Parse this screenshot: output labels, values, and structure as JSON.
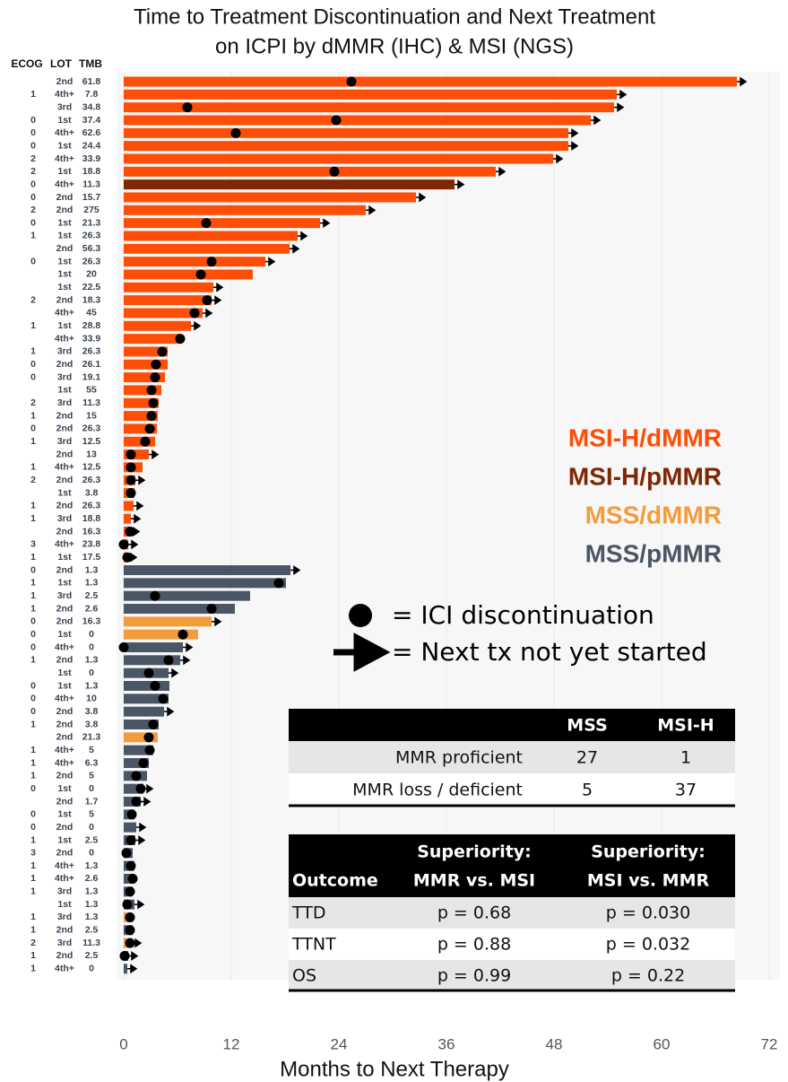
{
  "chart_data": {
    "type": "swimmer",
    "title_lines": [
      "Time to Treatment Discontinuation and Next Treatment",
      "on ICPI by dMMR (IHC) & MSI (NGS)"
    ],
    "x_label": "Months to Next Therapy",
    "xlim": [
      0,
      72
    ],
    "xticks": [
      0,
      12,
      24,
      36,
      48,
      60,
      72
    ],
    "grid": true,
    "column_headers": [
      "ECOG",
      "LOT",
      "TMB"
    ],
    "groups": [
      {
        "name": "MSI-H/dMMR",
        "color": "#fc4e07"
      },
      {
        "name": "MSI-H/pMMR",
        "color": "#7f2704"
      },
      {
        "name": "MSS/dMMR",
        "color": "#f39c3d"
      },
      {
        "name": "MSS/pMMR",
        "color": "#4a5566"
      }
    ],
    "symbol_legend": {
      "dot": "= ICI discontinuation",
      "arrow": "= Next tx not yet started"
    },
    "rows": [
      {
        "ecog": null,
        "lot": "2nd",
        "tmb": 61.8,
        "group": 0,
        "months": 68.4,
        "discontinued": 25.4,
        "ongoing": true
      },
      {
        "ecog": 1,
        "lot": "4th+",
        "tmb": 7.8,
        "group": 0,
        "months": 55,
        "discontinued": null,
        "ongoing": true
      },
      {
        "ecog": null,
        "lot": "3rd",
        "tmb": 34.8,
        "group": 0,
        "months": 54.7,
        "discontinued": 7.1,
        "ongoing": true
      },
      {
        "ecog": 0,
        "lot": "1st",
        "tmb": 37.4,
        "group": 0,
        "months": 52.1,
        "discontinued": 23.7,
        "ongoing": true
      },
      {
        "ecog": 0,
        "lot": "4th+",
        "tmb": 62.6,
        "group": 0,
        "months": 49.6,
        "discontinued": 12.5,
        "ongoing": true
      },
      {
        "ecog": 0,
        "lot": "1st",
        "tmb": 24.4,
        "group": 0,
        "months": 49.6,
        "discontinued": null,
        "ongoing": true
      },
      {
        "ecog": 2,
        "lot": "4th+",
        "tmb": 33.9,
        "group": 0,
        "months": 47.9,
        "discontinued": null,
        "ongoing": true
      },
      {
        "ecog": 2,
        "lot": "1st",
        "tmb": 18.8,
        "group": 0,
        "months": 41.5,
        "discontinued": 23.5,
        "ongoing": true
      },
      {
        "ecog": 0,
        "lot": "4th+",
        "tmb": 11.3,
        "group": 1,
        "months": 36.9,
        "discontinued": null,
        "ongoing": true
      },
      {
        "ecog": 0,
        "lot": "2nd",
        "tmb": 15.7,
        "group": 0,
        "months": 32.6,
        "discontinued": null,
        "ongoing": true
      },
      {
        "ecog": 2,
        "lot": "2nd",
        "tmb": 275,
        "group": 0,
        "months": 27,
        "discontinued": null,
        "ongoing": true
      },
      {
        "ecog": 0,
        "lot": "1st",
        "tmb": 21.3,
        "group": 0,
        "months": 21.9,
        "discontinued": 9.2,
        "ongoing": true
      },
      {
        "ecog": 1,
        "lot": "1st",
        "tmb": 26.3,
        "group": 0,
        "months": 19.4,
        "discontinued": null,
        "ongoing": true
      },
      {
        "ecog": null,
        "lot": "2nd",
        "tmb": 56.3,
        "group": 0,
        "months": 18.5,
        "discontinued": null,
        "ongoing": true
      },
      {
        "ecog": 0,
        "lot": "1st",
        "tmb": 26.3,
        "group": 0,
        "months": 15.8,
        "discontinued": 9.8,
        "ongoing": true
      },
      {
        "ecog": null,
        "lot": "1st",
        "tmb": 20,
        "group": 0,
        "months": 14.4,
        "discontinued": 8.6,
        "ongoing": false
      },
      {
        "ecog": null,
        "lot": "1st",
        "tmb": 22.5,
        "group": 0,
        "months": 10,
        "discontinued": null,
        "ongoing": true
      },
      {
        "ecog": 2,
        "lot": "2nd",
        "tmb": 18.3,
        "group": 0,
        "months": 9.8,
        "discontinued": 9.3,
        "ongoing": true
      },
      {
        "ecog": null,
        "lot": "4th+",
        "tmb": 45,
        "group": 0,
        "months": 8.8,
        "discontinued": 7.9,
        "ongoing": true
      },
      {
        "ecog": 1,
        "lot": "1st",
        "tmb": 28.8,
        "group": 0,
        "months": 7.5,
        "discontinued": null,
        "ongoing": true
      },
      {
        "ecog": null,
        "lot": "4th+",
        "tmb": 33.9,
        "group": 0,
        "months": 6.4,
        "discontinued": 6.3,
        "ongoing": false
      },
      {
        "ecog": 1,
        "lot": "3rd",
        "tmb": 26.3,
        "group": 0,
        "months": 4.9,
        "discontinued": 4.3,
        "ongoing": false
      },
      {
        "ecog": 0,
        "lot": "2nd",
        "tmb": 26.1,
        "group": 0,
        "months": 4.9,
        "discontinued": 3.6,
        "ongoing": false
      },
      {
        "ecog": 0,
        "lot": "3rd",
        "tmb": 19.1,
        "group": 0,
        "months": 4.6,
        "discontinued": 3.5,
        "ongoing": false
      },
      {
        "ecog": null,
        "lot": "1st",
        "tmb": 55,
        "group": 0,
        "months": 4.2,
        "discontinued": 3.1,
        "ongoing": false
      },
      {
        "ecog": 2,
        "lot": "3rd",
        "tmb": 11.3,
        "group": 0,
        "months": 3.9,
        "discontinued": 3.3,
        "ongoing": false
      },
      {
        "ecog": 1,
        "lot": "2nd",
        "tmb": 15,
        "group": 0,
        "months": 3.8,
        "discontinued": 3.1,
        "ongoing": false
      },
      {
        "ecog": 0,
        "lot": "2nd",
        "tmb": 26.3,
        "group": 0,
        "months": 3.7,
        "discontinued": 2.9,
        "ongoing": false
      },
      {
        "ecog": 1,
        "lot": "3rd",
        "tmb": 12.5,
        "group": 0,
        "months": 3.5,
        "discontinued": 2.4,
        "ongoing": false
      },
      {
        "ecog": null,
        "lot": "2nd",
        "tmb": 13,
        "group": 0,
        "months": 2.8,
        "discontinued": 0.8,
        "ongoing": true
      },
      {
        "ecog": 1,
        "lot": "4th+",
        "tmb": 12.5,
        "group": 0,
        "months": 2.1,
        "discontinued": 0.8,
        "ongoing": false
      },
      {
        "ecog": 2,
        "lot": "2nd",
        "tmb": 26.3,
        "group": 0,
        "months": 1.3,
        "discontinued": 0.8,
        "ongoing": true
      },
      {
        "ecog": null,
        "lot": "1st",
        "tmb": 3.8,
        "group": 0,
        "months": 1.2,
        "discontinued": 0.8,
        "ongoing": false
      },
      {
        "ecog": 1,
        "lot": "2nd",
        "tmb": 26.3,
        "group": 0,
        "months": 1.1,
        "discontinued": null,
        "ongoing": true
      },
      {
        "ecog": 1,
        "lot": "3rd",
        "tmb": 18.8,
        "group": 0,
        "months": 0.8,
        "discontinued": null,
        "ongoing": true
      },
      {
        "ecog": null,
        "lot": "2nd",
        "tmb": 16.3,
        "group": 0,
        "months": 0.7,
        "discontinued": 0.7,
        "ongoing": true
      },
      {
        "ecog": 3,
        "lot": "4th+",
        "tmb": 23.8,
        "group": 0,
        "months": 0.5,
        "discontinued": 0,
        "ongoing": true
      },
      {
        "ecog": 1,
        "lot": "1st",
        "tmb": 17.5,
        "group": 0,
        "months": 0.4,
        "discontinued": 0.4,
        "ongoing": true
      },
      {
        "ecog": 0,
        "lot": "2nd",
        "tmb": 1.3,
        "group": 3,
        "months": 18.6,
        "discontinued": null,
        "ongoing": true
      },
      {
        "ecog": 1,
        "lot": "1st",
        "tmb": 1.3,
        "group": 3,
        "months": 18.1,
        "discontinued": 17.3,
        "ongoing": false
      },
      {
        "ecog": 1,
        "lot": "3rd",
        "tmb": 2.5,
        "group": 3,
        "months": 14.1,
        "discontinued": 3.5,
        "ongoing": false
      },
      {
        "ecog": 1,
        "lot": "2nd",
        "tmb": 2.6,
        "group": 3,
        "months": 12.4,
        "discontinued": 9.8,
        "ongoing": false
      },
      {
        "ecog": 0,
        "lot": "2nd",
        "tmb": 16.3,
        "group": 2,
        "months": 9.8,
        "discontinued": null,
        "ongoing": true
      },
      {
        "ecog": 0,
        "lot": "1st",
        "tmb": 0,
        "group": 2,
        "months": 8.3,
        "discontinued": 6.6,
        "ongoing": false
      },
      {
        "ecog": 0,
        "lot": "4th+",
        "tmb": 0,
        "group": 3,
        "months": 6.6,
        "discontinued": 0,
        "ongoing": true
      },
      {
        "ecog": 1,
        "lot": "2nd",
        "tmb": 1.3,
        "group": 3,
        "months": 6.3,
        "discontinued": 5,
        "ongoing": true
      },
      {
        "ecog": null,
        "lot": "1st",
        "tmb": 0,
        "group": 3,
        "months": 5,
        "discontinued": 2.8,
        "ongoing": true
      },
      {
        "ecog": 0,
        "lot": "1st",
        "tmb": 1.3,
        "group": 3,
        "months": 5.1,
        "discontinued": 3.5,
        "ongoing": false
      },
      {
        "ecog": 0,
        "lot": "4th+",
        "tmb": 10,
        "group": 3,
        "months": 5,
        "discontinued": 4.4,
        "ongoing": false
      },
      {
        "ecog": 0,
        "lot": "2nd",
        "tmb": 3.8,
        "group": 3,
        "months": 4.5,
        "discontinued": null,
        "ongoing": true
      },
      {
        "ecog": 1,
        "lot": "2nd",
        "tmb": 3.8,
        "group": 3,
        "months": 3.9,
        "discontinued": 3.3,
        "ongoing": false
      },
      {
        "ecog": null,
        "lot": "2nd",
        "tmb": 21.3,
        "group": 2,
        "months": 3.8,
        "discontinued": 2.8,
        "ongoing": false
      },
      {
        "ecog": 1,
        "lot": "4th+",
        "tmb": 5,
        "group": 3,
        "months": 3.3,
        "discontinued": 2.9,
        "ongoing": false
      },
      {
        "ecog": 1,
        "lot": "4th+",
        "tmb": 6.3,
        "group": 3,
        "months": 2.8,
        "discontinued": 2.2,
        "ongoing": false
      },
      {
        "ecog": 1,
        "lot": "2nd",
        "tmb": 5,
        "group": 3,
        "months": 2.6,
        "discontinued": 1.4,
        "ongoing": false
      },
      {
        "ecog": 0,
        "lot": "1st",
        "tmb": 0,
        "group": 3,
        "months": 2.2,
        "discontinued": 1.9,
        "ongoing": true
      },
      {
        "ecog": null,
        "lot": "2nd",
        "tmb": 1.7,
        "group": 3,
        "months": 1.9,
        "discontinued": 1.4,
        "ongoing": true
      },
      {
        "ecog": 0,
        "lot": "1st",
        "tmb": 5,
        "group": 3,
        "months": 1.2,
        "discontinued": 0.9,
        "ongoing": false
      },
      {
        "ecog": 0,
        "lot": "2nd",
        "tmb": 0,
        "group": 3,
        "months": 1.4,
        "discontinued": null,
        "ongoing": true
      },
      {
        "ecog": 1,
        "lot": "1st",
        "tmb": 2.5,
        "group": 3,
        "months": 1.3,
        "discontinued": 0.8,
        "ongoing": true
      },
      {
        "ecog": 3,
        "lot": "2nd",
        "tmb": 0,
        "group": 3,
        "months": 1,
        "discontinued": 0.3,
        "ongoing": false
      },
      {
        "ecog": 1,
        "lot": "4th+",
        "tmb": 1.3,
        "group": 3,
        "months": 1.2,
        "discontinued": 0.8,
        "ongoing": false
      },
      {
        "ecog": 1,
        "lot": "4th+",
        "tmb": 2.6,
        "group": 3,
        "months": 1.2,
        "discontinued": 1,
        "ongoing": false
      },
      {
        "ecog": 1,
        "lot": "3rd",
        "tmb": 1.3,
        "group": 3,
        "months": 1,
        "discontinued": 0.7,
        "ongoing": false
      },
      {
        "ecog": null,
        "lot": "1st",
        "tmb": 1.3,
        "group": 3,
        "months": 1.2,
        "discontinued": 0.4,
        "ongoing": true
      },
      {
        "ecog": 1,
        "lot": "3rd",
        "tmb": 1.3,
        "group": 2,
        "months": 1,
        "discontinued": 0.7,
        "ongoing": false
      },
      {
        "ecog": 1,
        "lot": "2nd",
        "tmb": 2.5,
        "group": 3,
        "months": 1,
        "discontinued": 0.7,
        "ongoing": false
      },
      {
        "ecog": 2,
        "lot": "3rd",
        "tmb": 11.3,
        "group": 2,
        "months": 0.9,
        "discontinued": 0.7,
        "ongoing": true
      },
      {
        "ecog": 1,
        "lot": "2nd",
        "tmb": 2.5,
        "group": 3,
        "months": 0.5,
        "discontinued": 0.1,
        "ongoing": true
      },
      {
        "ecog": 1,
        "lot": "4th+",
        "tmb": 0,
        "group": 3,
        "months": 0.4,
        "discontinued": null,
        "ongoing": true
      }
    ],
    "counts_table": {
      "columns": [
        "MSS",
        "MSI-H"
      ],
      "rows": [
        [
          "MMR proficient",
          27,
          1
        ],
        [
          "MMR loss / deficient",
          5,
          37
        ]
      ]
    },
    "stats_table": {
      "header_lines": [
        [
          "Outcome"
        ],
        [
          "Superiority:",
          "MMR vs. MSI"
        ],
        [
          "Superiority:",
          "MSI vs. MMR"
        ]
      ],
      "rows": [
        [
          "TTD",
          "p = 0.68",
          "p = 0.030"
        ],
        [
          "TTNT",
          "p = 0.88",
          "p = 0.032"
        ],
        [
          "OS",
          "p = 0.99",
          "p = 0.22"
        ]
      ]
    }
  }
}
